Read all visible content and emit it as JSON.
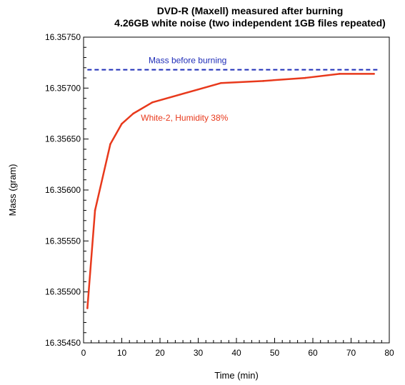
{
  "chart_data": {
    "type": "line",
    "title": "DVD-R  (Maxell) measured after burning",
    "subtitle": "4.26GB white noise (two independent 1GB files repeated)",
    "xlabel": "Time (min)",
    "ylabel": "Mass (gram)",
    "xlim": [
      0,
      80
    ],
    "ylim": [
      16.3545,
      16.3575
    ],
    "x_ticks": [
      0,
      10,
      20,
      30,
      40,
      50,
      60,
      70,
      80
    ],
    "y_ticks": [
      16.3545,
      16.355,
      16.3555,
      16.356,
      16.3565,
      16.357,
      16.3575
    ],
    "y_tick_labels": [
      "16.35450",
      "16.35500",
      "16.35550",
      "16.35600",
      "16.35650",
      "16.35700",
      "16.35750"
    ],
    "grid": false,
    "reference_line": {
      "label": "Mass before burning",
      "value": 16.35718,
      "color": "#1f2db8",
      "style": "dashed"
    },
    "series": [
      {
        "name": "White-2, Humidity 38%",
        "color": "#e8391c",
        "x": [
          1,
          3,
          7,
          10,
          13,
          18,
          36,
          47,
          58,
          67,
          76
        ],
        "y": [
          16.35484,
          16.3558,
          16.35645,
          16.35665,
          16.35675,
          16.35686,
          16.35705,
          16.35707,
          16.3571,
          16.35714,
          16.35714
        ]
      }
    ]
  }
}
